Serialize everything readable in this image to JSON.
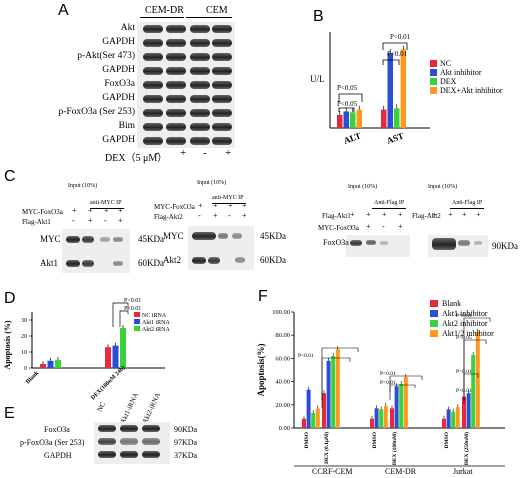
{
  "panel_labels": {
    "A": "A",
    "B": "B",
    "C": "C",
    "D": "D",
    "E": "E",
    "F": "F"
  },
  "panel_a": {
    "group1": "CEM-DR",
    "group2": "CEM",
    "rows": [
      "Akt",
      "GAPDH",
      "p-Akt(Ser 473)",
      "GAPDH",
      "FoxO3a",
      "GAPDH",
      "p-FoxO3a (Ser 253)",
      "Bim",
      "GAPDH"
    ],
    "dex_label": "DEX（5 μM）",
    "treat": [
      "-",
      "+",
      "-",
      "+"
    ]
  },
  "panel_b": {
    "ylabel": "U/L",
    "categories": [
      "ALT",
      "AST"
    ],
    "legend": [
      "NC",
      "Akt inhibitor",
      "DEX",
      "DEX+Akt inhibitor"
    ],
    "colors": [
      "#e8283c",
      "#2a4fd6",
      "#39d13c",
      "#ff9820"
    ],
    "sig": [
      "P<0.05",
      "P<0.05",
      "P<0.01",
      "P<0.01"
    ]
  },
  "panel_c": {
    "left_header_input": "Input (10%)",
    "left_header_ip": "anti-MYC IP",
    "row_myc_foxo3a": "MYC-FoxO3a",
    "row_flag_akt1": "Flag-Akt1",
    "row_flag_akt2": "Flag-Akt2",
    "blot_myc": "MYC",
    "blot_akt1": "Akt1",
    "blot_akt2": "Akt2",
    "kda45": "45KDa",
    "kda60": "60KDa",
    "right_header_ip": "Anti-Flag IP",
    "right_header_ip2": "Anti-Flag IP",
    "blot_foxo3a": "FoxO3a",
    "kda90": "90KDa",
    "signs_a": [
      "+",
      "+",
      "+",
      "+"
    ],
    "signs_b": [
      "-",
      "+",
      "-",
      "+"
    ]
  },
  "panel_d": {
    "ylabel": "Apoptosis (%)",
    "categories": [
      "Blank",
      "DEX(100nM 24h)"
    ],
    "legend": [
      "NC  iRNA",
      "Akt1 iRNA",
      "Akt2 iRNA"
    ],
    "colors": [
      "#e8283c",
      "#2a4fd6",
      "#39d13c"
    ],
    "yticks": [
      "0",
      "10",
      "20",
      "30"
    ],
    "sig": [
      "P<0.01",
      "P<0.01"
    ]
  },
  "panel_e": {
    "columns": [
      "NC",
      "Akt1-iRNA",
      "Akt2-iRNA"
    ],
    "rows": [
      "FoxO3a",
      "p-FoxO3a (Ser 253)",
      "GAPDH"
    ],
    "kda": [
      "90KDa",
      "97KDa",
      "37KDa"
    ]
  },
  "panel_f": {
    "ylabel": "Apoptosis(%)",
    "yticks": [
      "0.00",
      "20.00",
      "40.00",
      "60.00",
      "80.00",
      "100.00"
    ],
    "legend": [
      "Blank",
      "Akt1 inhibitor",
      "Akt2 inhibitor",
      "Akt1/2 inhibitor"
    ],
    "colors": [
      "#e8283c",
      "#2a4fd6",
      "#39d13c",
      "#ff9820"
    ],
    "xgroups": [
      "CCRF-CEM",
      "CEM-DR",
      "Jurkat"
    ],
    "subgroups": [
      "DMSO",
      "DEX (0.1μM)",
      "DMSO",
      "DEX (100nM)",
      "DMSO",
      "DEX (250nM)"
    ],
    "sig": [
      "P<0.01",
      "P<0.01",
      "P<0.01",
      "P<0.01",
      "P<0.05",
      "P<0.01",
      "P<0.01"
    ]
  },
  "chart_data": [
    {
      "type": "bar",
      "panel": "B",
      "ylabel": "U/L",
      "categories": [
        "ALT",
        "AST"
      ],
      "ylim": [
        0,
        220
      ],
      "series": [
        {
          "name": "NC",
          "values": [
            30,
            42
          ]
        },
        {
          "name": "Akt inhibitor",
          "values": [
            38,
            172
          ]
        },
        {
          "name": "DEX",
          "values": [
            36,
            45
          ]
        },
        {
          "name": "DEX+Akt inhibitor",
          "values": [
            42,
            180
          ]
        }
      ]
    },
    {
      "type": "bar",
      "panel": "D",
      "ylabel": "Apoptosis (%)",
      "categories": [
        "Blank",
        "DEX(100nM 24h)"
      ],
      "ylim": [
        0,
        35
      ],
      "series": [
        {
          "name": "NC  iRNA",
          "values": [
            2.5,
            13
          ]
        },
        {
          "name": "Akt1 iRNA",
          "values": [
            4.5,
            14
          ]
        },
        {
          "name": "Akt2 iRNA",
          "values": [
            5,
            25
          ]
        }
      ]
    },
    {
      "type": "bar",
      "panel": "F",
      "ylabel": "Apoptosis(%)",
      "categories": [
        "CCRF-CEM DMSO",
        "CCRF-CEM DEX (0.1μM)",
        "CEM-DR DMSO",
        "CEM-DR DEX (100nM)",
        "Jurkat DMSO",
        "Jurkat DEX (250nM)"
      ],
      "ylim": [
        0,
        100
      ],
      "series": [
        {
          "name": "Blank",
          "values": [
            8,
            30,
            8,
            17,
            8,
            27
          ]
        },
        {
          "name": "Akt1 inhibitor",
          "values": [
            33,
            58,
            17,
            36,
            16,
            30
          ]
        },
        {
          "name": "Akt2 inhibitor",
          "values": [
            13,
            62,
            16,
            38,
            14,
            63
          ]
        },
        {
          "name": "Akt1/2 inhibitor",
          "values": [
            17,
            68,
            19,
            44,
            18,
            83
          ]
        }
      ]
    }
  ]
}
